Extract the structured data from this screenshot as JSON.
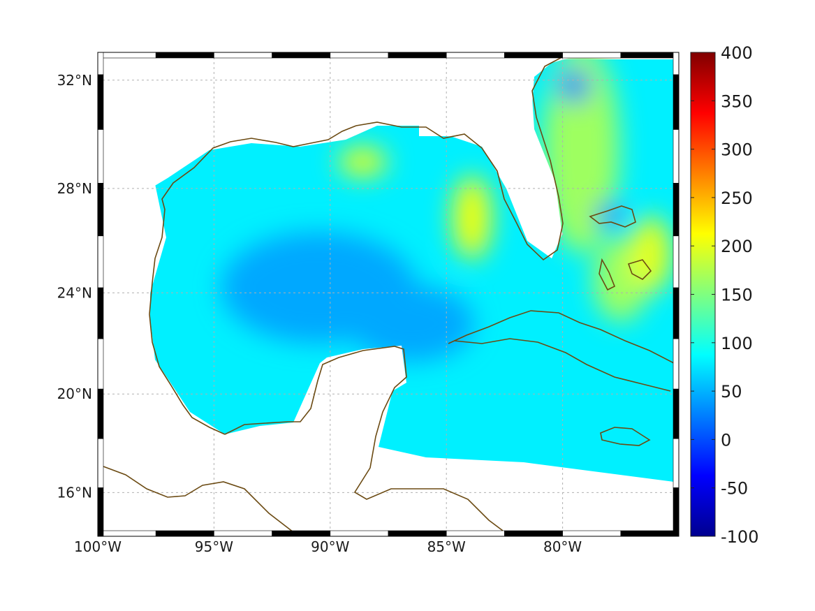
{
  "map": {
    "projection": "mercator",
    "lon_range": [
      -100,
      -75
    ],
    "lat_range": [
      14.2,
      33
    ],
    "lon_ticks": [
      {
        "value": -100,
        "label": "100°W"
      },
      {
        "value": -95,
        "label": "95°W"
      },
      {
        "value": -90,
        "label": "90°W"
      },
      {
        "value": -85,
        "label": "85°W"
      },
      {
        "value": -80,
        "label": "80°W"
      }
    ],
    "lat_ticks": [
      {
        "value": 32,
        "label": "32°N"
      },
      {
        "value": 28,
        "label": "28°N"
      },
      {
        "value": 24,
        "label": "24°N"
      },
      {
        "value": 20,
        "label": "20°N"
      },
      {
        "value": 16,
        "label": "16°N"
      }
    ],
    "grid": true,
    "coastline_color": "#6b4a12",
    "frame_colors": [
      "#000000",
      "#ffffff"
    ]
  },
  "colorbar": {
    "min": -100,
    "max": 400,
    "colormap": "jet",
    "ticks": [
      {
        "value": 400,
        "label": "400"
      },
      {
        "value": 350,
        "label": "350"
      },
      {
        "value": 300,
        "label": "300"
      },
      {
        "value": 250,
        "label": "250"
      },
      {
        "value": 200,
        "label": "200"
      },
      {
        "value": 150,
        "label": "150"
      },
      {
        "value": 100,
        "label": "100"
      },
      {
        "value": 50,
        "label": "50"
      },
      {
        "value": 0,
        "label": "0"
      },
      {
        "value": -50,
        "label": "-50"
      },
      {
        "value": -100,
        "label": "-100"
      }
    ]
  },
  "field_features": [
    {
      "name": "base",
      "value": 80
    },
    {
      "name": "central-gulf-low",
      "value": 45
    },
    {
      "name": "west-florida-shelf-high",
      "value": 205
    },
    {
      "name": "mississippi-outflow-high",
      "value": 195
    },
    {
      "name": "gulf-stream-band",
      "value": 165
    },
    {
      "name": "carolina-coast-low",
      "value": 20
    },
    {
      "name": "bahamas-low",
      "value": 10
    },
    {
      "name": "bahamas-high",
      "value": 200
    }
  ]
}
